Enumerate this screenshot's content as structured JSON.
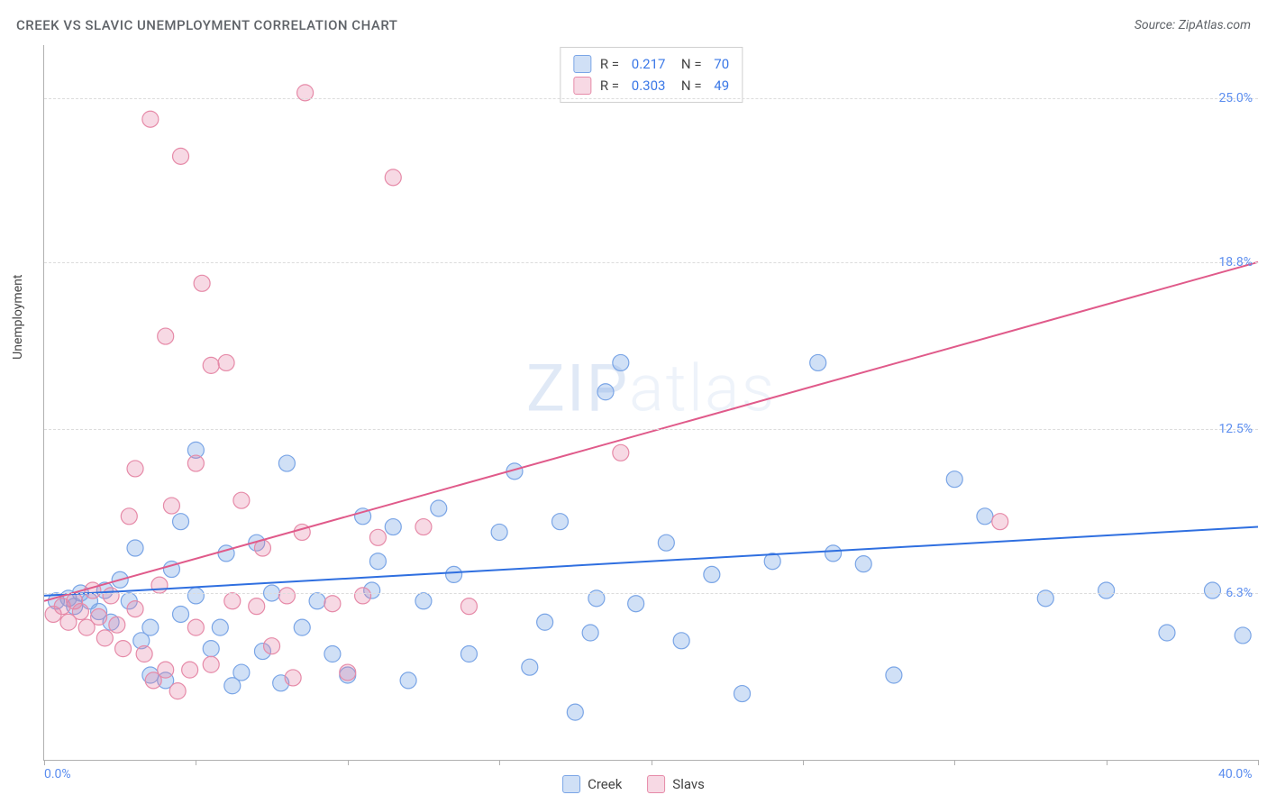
{
  "title": "CREEK VS SLAVIC UNEMPLOYMENT CORRELATION CHART",
  "source_label": "Source: ZipAtlas.com",
  "ylabel": "Unemployment",
  "watermark_text": "ZIPatlas",
  "chart": {
    "type": "scatter",
    "xlim": [
      0,
      40
    ],
    "ylim": [
      0,
      27
    ],
    "x_ticks_major": [
      0,
      40
    ],
    "x_tick_labels": [
      "0.0%",
      "40.0%"
    ],
    "x_minor_tick_step": 5,
    "y_ticks": [
      6.3,
      12.5,
      18.8,
      25.0
    ],
    "y_tick_labels": [
      "6.3%",
      "12.5%",
      "18.8%",
      "25.0%"
    ],
    "grid_color": "#dcdcdc",
    "axis_color": "#b0b0b0",
    "tick_label_color": "#5b8def",
    "background_color": "#ffffff",
    "trend_lines": [
      {
        "series": "creek",
        "x0": 0,
        "y0": 6.2,
        "x1": 40,
        "y1": 8.8,
        "color": "#2f6fe0",
        "width": 2
      },
      {
        "series": "slavs",
        "x0": 0,
        "y0": 6.0,
        "x1": 40,
        "y1": 18.8,
        "color": "#e05a8a",
        "width": 2
      }
    ],
    "series": [
      {
        "name": "Creek",
        "color_fill": "rgba(120,165,230,0.35)",
        "color_stroke": "#7aa5e6",
        "marker_radius": 9,
        "R": "0.217",
        "N": "70",
        "points": [
          [
            0.4,
            6.0
          ],
          [
            0.8,
            6.1
          ],
          [
            1.0,
            5.8
          ],
          [
            1.2,
            6.3
          ],
          [
            1.5,
            6.0
          ],
          [
            1.8,
            5.6
          ],
          [
            2.0,
            6.4
          ],
          [
            2.2,
            5.2
          ],
          [
            2.5,
            6.8
          ],
          [
            2.8,
            6.0
          ],
          [
            3.0,
            8.0
          ],
          [
            3.2,
            4.5
          ],
          [
            3.5,
            5.0
          ],
          [
            3.5,
            3.2
          ],
          [
            4.0,
            3.0
          ],
          [
            4.2,
            7.2
          ],
          [
            4.5,
            5.5
          ],
          [
            4.5,
            9.0
          ],
          [
            5.0,
            6.2
          ],
          [
            5.0,
            11.7
          ],
          [
            5.5,
            4.2
          ],
          [
            5.8,
            5.0
          ],
          [
            6.0,
            7.8
          ],
          [
            6.2,
            2.8
          ],
          [
            6.5,
            3.3
          ],
          [
            7.0,
            8.2
          ],
          [
            7.2,
            4.1
          ],
          [
            7.5,
            6.3
          ],
          [
            7.8,
            2.9
          ],
          [
            8.0,
            11.2
          ],
          [
            8.5,
            5.0
          ],
          [
            9.0,
            6.0
          ],
          [
            9.5,
            4.0
          ],
          [
            10.0,
            3.2
          ],
          [
            10.5,
            9.2
          ],
          [
            10.8,
            6.4
          ],
          [
            11.0,
            7.5
          ],
          [
            11.5,
            8.8
          ],
          [
            12.0,
            3.0
          ],
          [
            12.5,
            6.0
          ],
          [
            13.0,
            9.5
          ],
          [
            13.5,
            7.0
          ],
          [
            14.0,
            4.0
          ],
          [
            15.0,
            8.6
          ],
          [
            15.5,
            10.9
          ],
          [
            16.0,
            3.5
          ],
          [
            16.5,
            5.2
          ],
          [
            17.0,
            9.0
          ],
          [
            17.5,
            1.8
          ],
          [
            18.0,
            4.8
          ],
          [
            18.2,
            6.1
          ],
          [
            18.5,
            13.9
          ],
          [
            19.0,
            15.0
          ],
          [
            19.5,
            5.9
          ],
          [
            20.5,
            8.2
          ],
          [
            21.0,
            4.5
          ],
          [
            22.0,
            7.0
          ],
          [
            23.0,
            2.5
          ],
          [
            24.0,
            7.5
          ],
          [
            25.5,
            15.0
          ],
          [
            26.0,
            7.8
          ],
          [
            27.0,
            7.4
          ],
          [
            28.0,
            3.2
          ],
          [
            30.0,
            10.6
          ],
          [
            31.0,
            9.2
          ],
          [
            33.0,
            6.1
          ],
          [
            35.0,
            6.4
          ],
          [
            37.0,
            4.8
          ],
          [
            38.5,
            6.4
          ],
          [
            39.5,
            4.7
          ]
        ]
      },
      {
        "name": "Slavs",
        "color_fill": "rgba(230,130,165,0.30)",
        "color_stroke": "#e68aa8",
        "marker_radius": 9,
        "R": "0.303",
        "N": "49",
        "points": [
          [
            0.3,
            5.5
          ],
          [
            0.6,
            5.8
          ],
          [
            0.8,
            5.2
          ],
          [
            1.0,
            6.0
          ],
          [
            1.2,
            5.6
          ],
          [
            1.4,
            5.0
          ],
          [
            1.6,
            6.4
          ],
          [
            1.8,
            5.4
          ],
          [
            2.0,
            4.6
          ],
          [
            2.2,
            6.2
          ],
          [
            2.4,
            5.1
          ],
          [
            2.6,
            4.2
          ],
          [
            2.8,
            9.2
          ],
          [
            3.0,
            11.0
          ],
          [
            3.0,
            5.7
          ],
          [
            3.3,
            4.0
          ],
          [
            3.5,
            24.2
          ],
          [
            3.6,
            3.0
          ],
          [
            3.8,
            6.6
          ],
          [
            4.0,
            16.0
          ],
          [
            4.0,
            3.4
          ],
          [
            4.2,
            9.6
          ],
          [
            4.4,
            2.6
          ],
          [
            4.5,
            22.8
          ],
          [
            4.8,
            3.4
          ],
          [
            5.0,
            5.0
          ],
          [
            5.0,
            11.2
          ],
          [
            5.2,
            18.0
          ],
          [
            5.5,
            14.9
          ],
          [
            5.5,
            3.6
          ],
          [
            6.0,
            15.0
          ],
          [
            6.2,
            6.0
          ],
          [
            6.5,
            9.8
          ],
          [
            7.0,
            5.8
          ],
          [
            7.2,
            8.0
          ],
          [
            7.5,
            4.3
          ],
          [
            8.0,
            6.2
          ],
          [
            8.2,
            3.1
          ],
          [
            8.5,
            8.6
          ],
          [
            8.6,
            25.2
          ],
          [
            9.5,
            5.9
          ],
          [
            10.0,
            3.3
          ],
          [
            10.5,
            6.2
          ],
          [
            11.0,
            8.4
          ],
          [
            11.5,
            22.0
          ],
          [
            12.5,
            8.8
          ],
          [
            14.0,
            5.8
          ],
          [
            19.0,
            11.6
          ],
          [
            31.5,
            9.0
          ]
        ]
      }
    ]
  },
  "stat_legend": {
    "rows": [
      {
        "swatch_fill": "rgba(120,165,230,0.35)",
        "swatch_stroke": "#7aa5e6",
        "R": "0.217",
        "N": "70"
      },
      {
        "swatch_fill": "rgba(230,130,165,0.30)",
        "swatch_stroke": "#e68aa8",
        "R": "0.303",
        "N": "49"
      }
    ]
  },
  "bottom_legend": {
    "items": [
      {
        "swatch_fill": "rgba(120,165,230,0.35)",
        "swatch_stroke": "#7aa5e6",
        "label": "Creek"
      },
      {
        "swatch_fill": "rgba(230,130,165,0.30)",
        "swatch_stroke": "#e68aa8",
        "label": "Slavs"
      }
    ]
  }
}
